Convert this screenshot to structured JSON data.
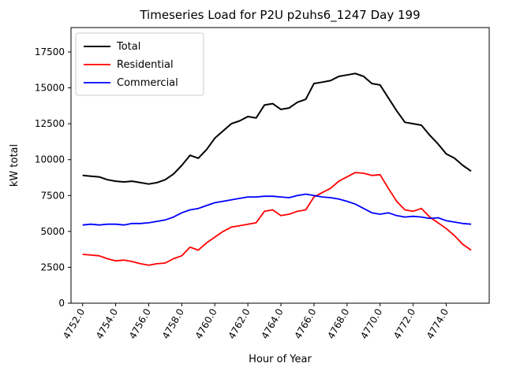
{
  "figure": {
    "background": "#ffffff"
  },
  "chart_data": {
    "type": "line",
    "title": "Timeseries Load for P2U p2uhs6_1247  Day 199",
    "xlabel": "Hour of Year",
    "ylabel": "kW total",
    "xlim": [
      4751.3,
      4776.6
    ],
    "ylim": [
      0,
      19200
    ],
    "xticks": [
      4752.0,
      4754.0,
      4756.0,
      4758.0,
      4760.0,
      4762.0,
      4764.0,
      4766.0,
      4768.0,
      4770.0,
      4772.0,
      4774.0
    ],
    "xtick_labels": [
      "4752.0",
      "4754.0",
      "4756.0",
      "4758.0",
      "4760.0",
      "4762.0",
      "4764.0",
      "4766.0",
      "4768.0",
      "4770.0",
      "4772.0",
      "4774.0"
    ],
    "yticks": [
      0,
      2500,
      5000,
      7500,
      10000,
      12500,
      15000,
      17500
    ],
    "ytick_labels": [
      "0",
      "2500",
      "5000",
      "7500",
      "10000",
      "12500",
      "15000",
      "17500"
    ],
    "grid": false,
    "legend_position": "upper-left",
    "x": [
      4752.0,
      4752.5,
      4753.0,
      4753.5,
      4754.0,
      4754.5,
      4755.0,
      4755.5,
      4756.0,
      4756.5,
      4757.0,
      4757.5,
      4758.0,
      4758.5,
      4759.0,
      4759.5,
      4760.0,
      4760.5,
      4761.0,
      4761.5,
      4762.0,
      4762.5,
      4763.0,
      4763.5,
      4764.0,
      4764.5,
      4765.0,
      4765.5,
      4766.0,
      4766.5,
      4767.0,
      4767.5,
      4768.0,
      4768.5,
      4769.0,
      4769.5,
      4770.0,
      4770.5,
      4771.0,
      4771.5,
      4772.0,
      4772.5,
      4773.0,
      4773.5,
      4774.0,
      4774.5,
      4775.0,
      4775.5
    ],
    "series": [
      {
        "name": "Total",
        "color": "#000000",
        "line_width": 2,
        "values": [
          8900,
          8850,
          8800,
          8600,
          8500,
          8450,
          8500,
          8400,
          8300,
          8400,
          8600,
          9000,
          9600,
          10300,
          10100,
          10700,
          11500,
          12000,
          12500,
          12700,
          13000,
          12900,
          13800,
          13900,
          13500,
          13600,
          14000,
          14200,
          15300,
          15400,
          15500,
          15800,
          15900,
          16000,
          15800,
          15300,
          15200,
          14300,
          13400,
          12600,
          12500,
          12400,
          11700,
          11100,
          10400,
          10100,
          9600,
          9200
        ]
      },
      {
        "name": "Residential",
        "color": "#ff0000",
        "line_width": 1.8,
        "values": [
          3400,
          3350,
          3300,
          3100,
          2950,
          3000,
          2900,
          2750,
          2650,
          2750,
          2800,
          3100,
          3300,
          3900,
          3700,
          4200,
          4600,
          5000,
          5300,
          5400,
          5500,
          5600,
          6400,
          6500,
          6100,
          6200,
          6400,
          6500,
          7400,
          7700,
          8000,
          8500,
          8800,
          9100,
          9050,
          8900,
          8950,
          8000,
          7100,
          6500,
          6400,
          6600,
          6000,
          5600,
          5200,
          4700,
          4100,
          3700
        ]
      },
      {
        "name": "Commercial",
        "color": "#0000ff",
        "line_width": 1.8,
        "values": [
          5450,
          5500,
          5450,
          5500,
          5500,
          5450,
          5550,
          5550,
          5600,
          5700,
          5800,
          6000,
          6300,
          6500,
          6600,
          6800,
          7000,
          7100,
          7200,
          7300,
          7400,
          7400,
          7450,
          7450,
          7400,
          7350,
          7500,
          7600,
          7500,
          7400,
          7350,
          7250,
          7100,
          6900,
          6600,
          6300,
          6200,
          6300,
          6100,
          6000,
          6050,
          6000,
          5900,
          5950,
          5750,
          5650,
          5550,
          5500
        ]
      }
    ]
  }
}
